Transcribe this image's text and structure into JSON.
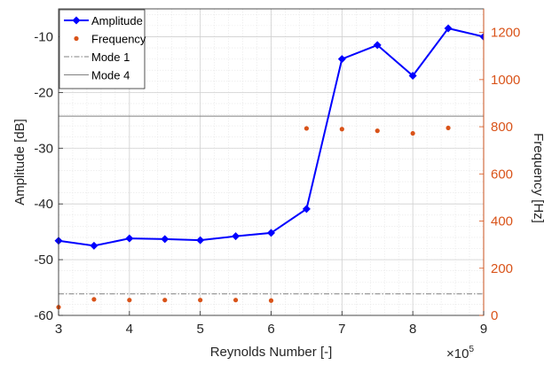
{
  "chart_data": {
    "type": "line",
    "xlabel": "Reynolds Number [-]",
    "ylabel": "Amplitude [dB]",
    "y2label": "Frequency [Hz]",
    "x_exponent_base": "×10",
    "x_exponent_power": "5",
    "xlim": [
      3,
      9
    ],
    "ylim": [
      -60,
      -5
    ],
    "y2lim": [
      0,
      1300
    ],
    "xticks": [
      3,
      4,
      5,
      6,
      7,
      8,
      9
    ],
    "yticks": [
      -60,
      -50,
      -40,
      -30,
      -20,
      -10
    ],
    "y2ticks": [
      0,
      200,
      400,
      600,
      800,
      1000,
      1200
    ],
    "grid": true,
    "legend_position": "top-left",
    "colors": {
      "amplitude": "#0000ff",
      "frequency": "#d95319",
      "mode1": "#808080",
      "mode4": "#808080",
      "right_axis": "#d95319"
    },
    "series": [
      {
        "name": "Amplitude",
        "axis": "left",
        "style": "line-diamond",
        "x": [
          3,
          3.5,
          4,
          4.5,
          5,
          5.5,
          6,
          6.5,
          7,
          7.5,
          8,
          8.5,
          9
        ],
        "y": [
          -46.6,
          -47.5,
          -46.2,
          -46.3,
          -46.5,
          -45.8,
          -45.2,
          -40.9,
          -14,
          -11.5,
          -17,
          -8.5,
          -10
        ]
      },
      {
        "name": "Frequency",
        "axis": "right",
        "style": "dots",
        "x": [
          3,
          3.5,
          4,
          4.5,
          5,
          5.5,
          6,
          6.5,
          7,
          7.5,
          8,
          8.5
        ],
        "y": [
          35,
          68,
          65,
          65,
          65,
          65,
          63,
          793,
          790,
          783,
          772,
          795
        ]
      },
      {
        "name": "Mode 1",
        "axis": "right",
        "style": "hline-dashdot",
        "y": 91
      },
      {
        "name": "Mode 4",
        "axis": "right",
        "style": "hline-solid",
        "y": 845
      }
    ]
  }
}
